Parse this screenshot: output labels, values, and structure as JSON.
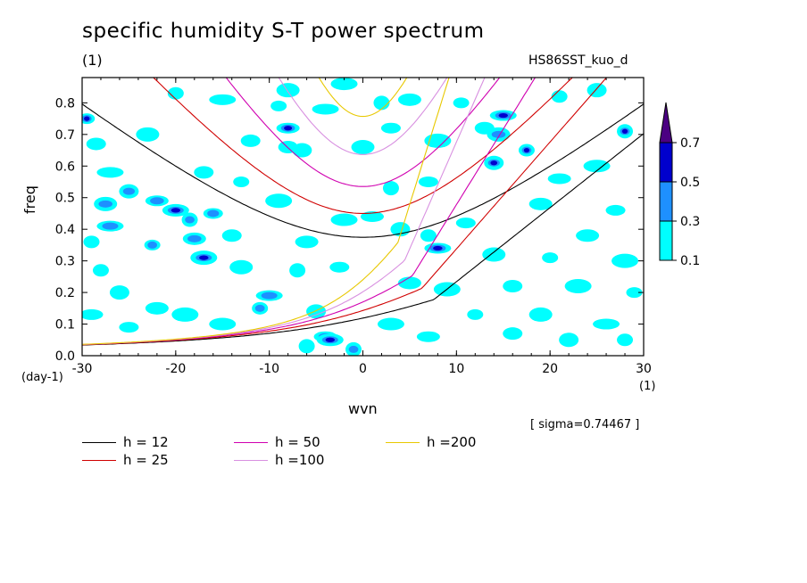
{
  "title": "specific humidity S-T power spectrum",
  "units": "(1)",
  "case_name": "HS86SST_kuo_d",
  "sigma_note": "[ sigma=0.74467 ]",
  "colors": {
    "level1": "#00ffff",
    "level2": "#1e90ff",
    "level3": "#0000cd",
    "level4": "#4b0082"
  },
  "chart_data": {
    "type": "heatmap",
    "xlabel": "wvn",
    "ylabel": "freq",
    "x_unit": "(1)",
    "y_unit": "(day-1)",
    "xlim": [
      -30,
      30
    ],
    "ylim": [
      0,
      0.88
    ],
    "x_ticks": [
      "-30",
      "-20",
      "-10",
      "0",
      "10",
      "20",
      "30"
    ],
    "y_ticks": [
      "0.0",
      "0.1",
      "0.2",
      "0.3",
      "0.4",
      "0.5",
      "0.6",
      "0.7",
      "0.8"
    ],
    "colorbar": {
      "levels": [
        "0.1",
        "0.3",
        "0.5",
        "0.7"
      ]
    },
    "dispersion_curves": [
      {
        "label": "h = 12",
        "color": "#000000",
        "h": 12
      },
      {
        "label": "h = 25",
        "color": "#d00000",
        "h": 25
      },
      {
        "label": "h = 50",
        "color": "#d000b0",
        "h": 50
      },
      {
        "label": "h =100",
        "color": "#d890e0",
        "h": 100
      },
      {
        "label": "h =200",
        "color": "#e8c800",
        "h": 200
      }
    ],
    "blobs": [
      {
        "x": -29.5,
        "y": 0.75,
        "level": 3
      },
      {
        "x": -28.5,
        "y": 0.67,
        "level": 1
      },
      {
        "x": -27.5,
        "y": 0.48,
        "level": 2
      },
      {
        "x": -27,
        "y": 0.41,
        "level": 2
      },
      {
        "x": -28,
        "y": 0.27,
        "level": 1
      },
      {
        "x": -25,
        "y": 0.52,
        "level": 2
      },
      {
        "x": -22,
        "y": 0.49,
        "level": 2
      },
      {
        "x": -20,
        "y": 0.46,
        "level": 3
      },
      {
        "x": -18.5,
        "y": 0.43,
        "level": 2
      },
      {
        "x": -16,
        "y": 0.45,
        "level": 2
      },
      {
        "x": -18,
        "y": 0.37,
        "level": 2
      },
      {
        "x": -17,
        "y": 0.31,
        "level": 3
      },
      {
        "x": -22.5,
        "y": 0.35,
        "level": 2
      },
      {
        "x": -14,
        "y": 0.38,
        "level": 1
      },
      {
        "x": -13,
        "y": 0.28,
        "level": 1
      },
      {
        "x": -10,
        "y": 0.19,
        "level": 2
      },
      {
        "x": -11,
        "y": 0.15,
        "level": 2
      },
      {
        "x": -5,
        "y": 0.14,
        "level": 1
      },
      {
        "x": -4,
        "y": 0.06,
        "level": 2
      },
      {
        "x": -3.5,
        "y": 0.05,
        "level": 3
      },
      {
        "x": -1,
        "y": 0.02,
        "level": 2
      },
      {
        "x": -25,
        "y": 0.09,
        "level": 1
      },
      {
        "x": -22,
        "y": 0.15,
        "level": 1
      },
      {
        "x": -19,
        "y": 0.13,
        "level": 1
      },
      {
        "x": -9,
        "y": 0.79,
        "level": 1
      },
      {
        "x": -8,
        "y": 0.66,
        "level": 1
      },
      {
        "x": -8,
        "y": 0.84,
        "level": 1
      },
      {
        "x": -15,
        "y": 0.81,
        "level": 1
      },
      {
        "x": -20,
        "y": 0.83,
        "level": 1
      },
      {
        "x": -6.5,
        "y": 0.65,
        "level": 1
      },
      {
        "x": -8,
        "y": 0.72,
        "level": 3
      },
      {
        "x": -2,
        "y": 0.86,
        "level": 1
      },
      {
        "x": 2,
        "y": 0.8,
        "level": 1
      },
      {
        "x": 3,
        "y": 0.72,
        "level": 1
      },
      {
        "x": 5,
        "y": 0.81,
        "level": 1
      },
      {
        "x": 8,
        "y": 0.68,
        "level": 1
      },
      {
        "x": 10.5,
        "y": 0.8,
        "level": 1
      },
      {
        "x": 13,
        "y": 0.72,
        "level": 1
      },
      {
        "x": 14.5,
        "y": 0.7,
        "level": 2
      },
      {
        "x": 15,
        "y": 0.76,
        "level": 3
      },
      {
        "x": 17.5,
        "y": 0.65,
        "level": 3
      },
      {
        "x": 14,
        "y": 0.61,
        "level": 3
      },
      {
        "x": 21,
        "y": 0.56,
        "level": 1
      },
      {
        "x": 25,
        "y": 0.6,
        "level": 1
      },
      {
        "x": 28,
        "y": 0.71,
        "level": 3
      },
      {
        "x": 27,
        "y": 0.46,
        "level": 1
      },
      {
        "x": 24,
        "y": 0.38,
        "level": 1
      },
      {
        "x": 28,
        "y": 0.3,
        "level": 1
      },
      {
        "x": 20,
        "y": 0.31,
        "level": 1
      },
      {
        "x": 16,
        "y": 0.22,
        "level": 1
      },
      {
        "x": 14,
        "y": 0.32,
        "level": 1
      },
      {
        "x": 8,
        "y": 0.34,
        "level": 3
      },
      {
        "x": 7,
        "y": 0.38,
        "level": 1
      },
      {
        "x": 4,
        "y": 0.4,
        "level": 1
      },
      {
        "x": 1,
        "y": 0.44,
        "level": 1
      },
      {
        "x": -2,
        "y": 0.43,
        "level": 1
      },
      {
        "x": 3,
        "y": 0.53,
        "level": 1
      },
      {
        "x": 7,
        "y": 0.55,
        "level": 1
      },
      {
        "x": 5,
        "y": 0.23,
        "level": 1
      },
      {
        "x": 9,
        "y": 0.21,
        "level": 1
      },
      {
        "x": 12,
        "y": 0.13,
        "level": 1
      },
      {
        "x": 16,
        "y": 0.07,
        "level": 1
      },
      {
        "x": 19,
        "y": 0.13,
        "level": 1
      },
      {
        "x": 26,
        "y": 0.1,
        "level": 1
      },
      {
        "x": 28,
        "y": 0.05,
        "level": 1
      },
      {
        "x": 22,
        "y": 0.05,
        "level": 1
      },
      {
        "x": 7,
        "y": 0.06,
        "level": 1
      },
      {
        "x": 3,
        "y": 0.1,
        "level": 1
      },
      {
        "x": -7,
        "y": 0.27,
        "level": 1
      },
      {
        "x": -2.5,
        "y": 0.28,
        "level": 1
      },
      {
        "x": -6,
        "y": 0.36,
        "level": 1
      },
      {
        "x": -9,
        "y": 0.49,
        "level": 1
      },
      {
        "x": -13,
        "y": 0.55,
        "level": 1
      },
      {
        "x": -17,
        "y": 0.58,
        "level": 1
      },
      {
        "x": -23,
        "y": 0.7,
        "level": 1
      },
      {
        "x": -27,
        "y": 0.58,
        "level": 1
      },
      {
        "x": -29,
        "y": 0.36,
        "level": 1
      },
      {
        "x": -26,
        "y": 0.2,
        "level": 1
      },
      {
        "x": -29,
        "y": 0.13,
        "level": 1
      },
      {
        "x": -15,
        "y": 0.1,
        "level": 1
      },
      {
        "x": -6,
        "y": 0.03,
        "level": 1
      },
      {
        "x": 11,
        "y": 0.42,
        "level": 1
      },
      {
        "x": 19,
        "y": 0.48,
        "level": 1
      },
      {
        "x": 23,
        "y": 0.22,
        "level": 1
      },
      {
        "x": 29,
        "y": 0.2,
        "level": 1
      },
      {
        "x": -12,
        "y": 0.68,
        "level": 1
      },
      {
        "x": 0,
        "y": 0.66,
        "level": 1
      },
      {
        "x": -4,
        "y": 0.78,
        "level": 1
      },
      {
        "x": 21,
        "y": 0.82,
        "level": 1
      },
      {
        "x": 25,
        "y": 0.84,
        "level": 1
      }
    ]
  }
}
